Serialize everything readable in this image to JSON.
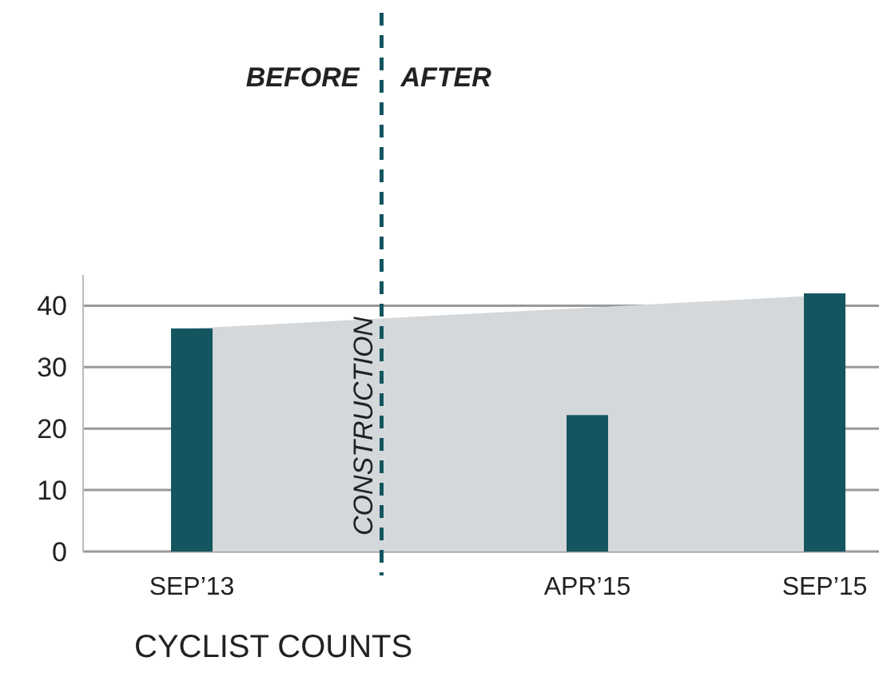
{
  "chart_data": {
    "type": "bar",
    "xlabel": "CYCLIST COUNTS",
    "categories": [
      "SEP’13",
      null,
      null,
      null,
      null,
      "APR’15",
      null,
      null,
      "SEP’15"
    ],
    "series": [
      {
        "type": "area",
        "color": "#d5d8db",
        "x": [
          "SEP’13",
          "SEP’15"
        ],
        "values": [
          36.3,
          41.7
        ]
      },
      {
        "color": "#135660",
        "values": [
          36.3,
          null,
          null,
          null,
          null,
          22.2,
          null,
          null,
          42.0
        ]
      }
    ],
    "ylim": [
      0,
      45
    ],
    "yticks": [
      0,
      10,
      20,
      30,
      40
    ],
    "grid": "y",
    "annotations": [
      "BEFORE",
      "AFTER",
      "CONSTRUCTION"
    ]
  }
}
